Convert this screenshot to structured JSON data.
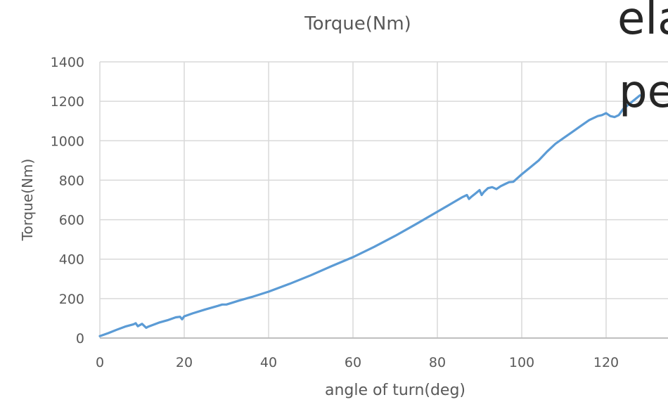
{
  "chart_data": {
    "type": "line",
    "title": "Torque(Nm)",
    "xlabel": "angle of turn(deg)",
    "ylabel": "Torque(Nm)",
    "xlim": [
      0,
      140
    ],
    "ylim": [
      0,
      1400
    ],
    "x_ticks": [
      0,
      20,
      40,
      60,
      80,
      100,
      120
    ],
    "y_ticks": [
      0,
      200,
      400,
      600,
      800,
      1000,
      1200,
      1400
    ],
    "grid": true,
    "legend": "none",
    "series": [
      {
        "color": "#5b9bd5",
        "x": [
          0,
          2,
          4,
          6,
          8,
          8.5,
          9,
          10,
          11,
          11.5,
          12,
          14,
          16,
          18,
          19,
          19.5,
          20,
          22,
          25,
          28,
          29,
          30,
          33,
          36,
          40,
          45,
          50,
          55,
          60,
          65,
          70,
          75,
          80,
          84,
          86,
          87,
          87.5,
          88,
          89,
          90,
          90.5,
          91,
          92,
          93,
          94,
          95,
          96,
          97,
          98,
          100,
          102,
          104,
          106,
          108,
          110,
          112,
          114,
          116,
          118,
          119,
          120,
          121,
          122,
          123,
          124,
          126,
          128
        ],
        "y": [
          10,
          25,
          42,
          58,
          70,
          75,
          60,
          72,
          52,
          58,
          62,
          78,
          90,
          105,
          108,
          95,
          110,
          125,
          145,
          163,
          170,
          170,
          190,
          208,
          235,
          275,
          318,
          365,
          410,
          462,
          518,
          578,
          640,
          690,
          715,
          725,
          705,
          715,
          732,
          750,
          725,
          740,
          760,
          765,
          755,
          770,
          780,
          790,
          792,
          830,
          865,
          900,
          945,
          985,
          1015,
          1045,
          1075,
          1105,
          1125,
          1130,
          1140,
          1125,
          1120,
          1130,
          1160,
          1195,
          1230
        ]
      }
    ]
  },
  "overlay": {
    "line1": "ela",
    "line2": "pe"
  }
}
